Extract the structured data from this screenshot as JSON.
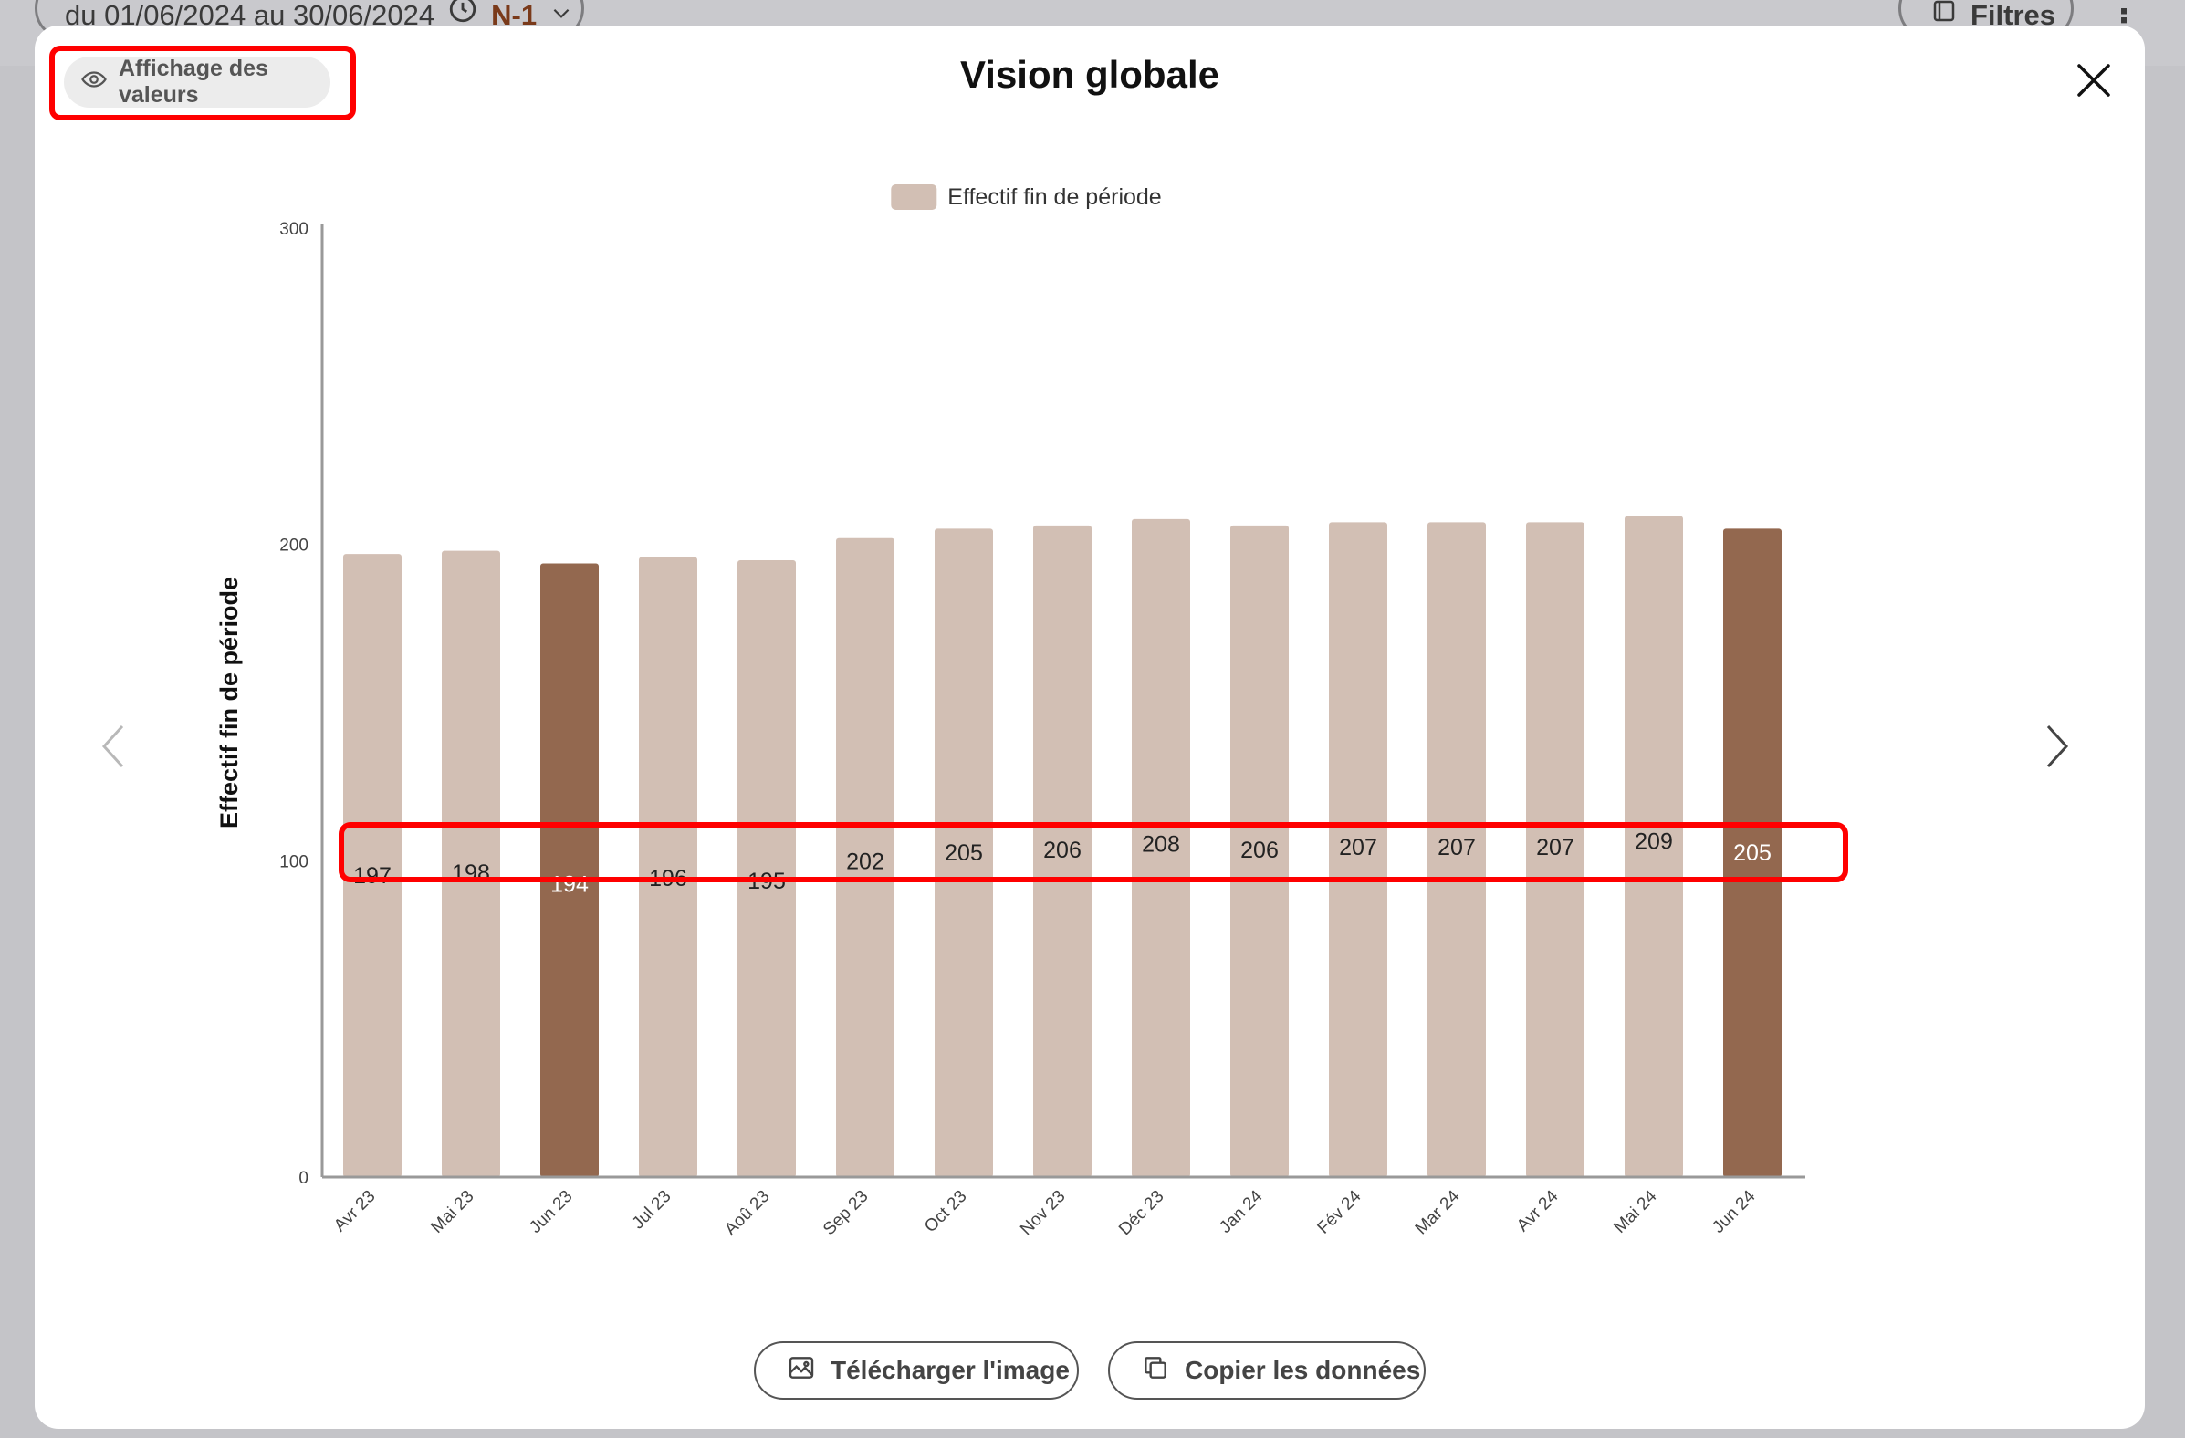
{
  "background": {
    "date_range_label": "du 01/06/2024 au 30/06/2024",
    "comparison_label": "N-1",
    "filters_label": "Filtres"
  },
  "modal": {
    "title": "Vision globale",
    "values_toggle_label": "Affichage des valeurs",
    "download_label": "Télécharger l'image",
    "copy_label": "Copier les données"
  },
  "colors": {
    "bar_default": "#d2bfb4",
    "bar_highlight": "#93684f",
    "annotation_red": "#ff0000",
    "axis": "#999999"
  },
  "chart_data": {
    "type": "bar",
    "legend": [
      "Effectif fin de période"
    ],
    "legend_position": "top-center",
    "ylabel": "Effectif fin de période",
    "xlabel": "",
    "ylim": [
      0,
      300
    ],
    "yticks": [
      0,
      100,
      200,
      300
    ],
    "grid": false,
    "categories": [
      "Avr 23",
      "Mai 23",
      "Jun 23",
      "Jul 23",
      "Aoû 23",
      "Sep 23",
      "Oct 23",
      "Nov 23",
      "Déc 23",
      "Jan 24",
      "Fév 24",
      "Mar 24",
      "Avr 24",
      "Mai 24",
      "Jun 24"
    ],
    "series": [
      {
        "name": "Effectif fin de période",
        "values": [
          197,
          198,
          194,
          196,
          195,
          202,
          205,
          206,
          208,
          206,
          207,
          207,
          207,
          209,
          205
        ]
      }
    ],
    "highlighted_categories": [
      "Jun 23",
      "Jun 24"
    ],
    "data_labels_shown": true
  }
}
